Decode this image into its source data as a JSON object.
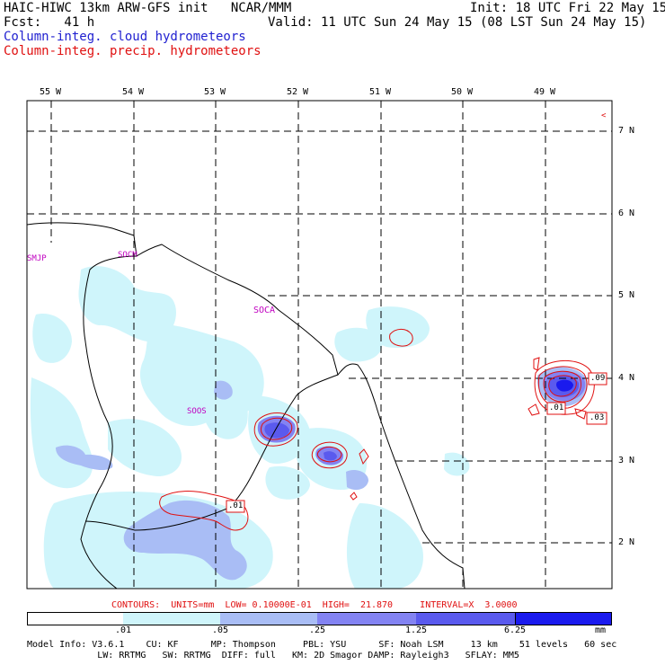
{
  "header": {
    "title": "HAIC-HIWC 13km ARW-GFS init   NCAR/MMM",
    "forecast": "Fcst:   41 h",
    "init": "Init: 18 UTC Fri 22 May 15",
    "valid": "Valid: 11 UTC Sun 24 May 15 (08 LST Sun 24 May 15)",
    "legend_cloud": "Column-integ. cloud hydrometeors",
    "legend_precip": "Column-integ. precip. hydrometeors"
  },
  "colors": {
    "cloud": "#1f1fd0",
    "precip": "#e01010",
    "boundary": "#000000",
    "region_label": "#c000c0"
  },
  "map": {
    "lon_labels": [
      "55 W",
      "54 W",
      "53 W",
      "52 W",
      "51 W",
      "50 W",
      "49 W"
    ],
    "lat_labels": [
      "7 N",
      "6 N",
      "5 N",
      "4 N",
      "3 N",
      "2 N"
    ],
    "region_labels": [
      "SMJP",
      "SOCM",
      "SOCA",
      "SOOS"
    ],
    "contour_labels": [
      ".09",
      ".01",
      ".03",
      ".01"
    ],
    "marker": "<"
  },
  "contours_line": "CONTOURS:  UNITS=mm  LOW= 0.10000E-01  HIGH=  21.870     INTERVAL=X  3.0000",
  "colorbar": {
    "labels": [
      ".01",
      ".05",
      ".25",
      "1.25",
      "6.25"
    ],
    "unit": "mm",
    "colors": [
      "#ffffff",
      "#cff5fb",
      "#a9bdf5",
      "#8383f2",
      "#5a5aee",
      "#1a1aee"
    ]
  },
  "model_info": {
    "line1": "Model Info: V3.6.1    CU: KF      MP: Thompson     PBL: YSU      SF: Noah LSM     13 km    51 levels   60 sec",
    "line2": "             LW: RRTMG   SW: RRTMG  DIFF: full   KM: 2D Smagor DAMP: Rayleigh3   SFLAY: MM5"
  }
}
